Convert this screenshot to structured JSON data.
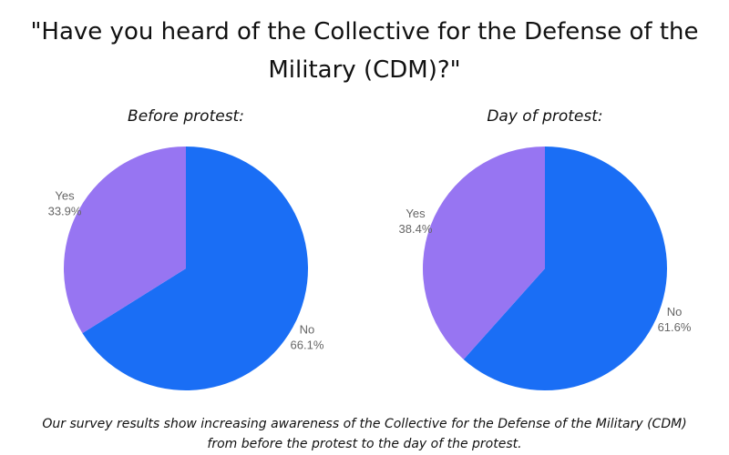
{
  "title": "\"Have you heard of the Collective for the Defense of the Military (CDM)?\"",
  "caption_line1": "Our survey results show increasing awareness of the Collective for the Defense of the Military (CDM)",
  "caption_line2": "from before the protest to the day of the protest.",
  "colors": {
    "no": "#1a6ef5",
    "yes": "#9775f2"
  },
  "chart_data": [
    {
      "type": "pie",
      "title": "Before protest:",
      "slices": [
        {
          "label": "No",
          "value": 66.1,
          "display": "66.1%"
        },
        {
          "label": "Yes",
          "value": 33.9,
          "display": "33.9%"
        }
      ]
    },
    {
      "type": "pie",
      "title": "Day of protest:",
      "slices": [
        {
          "label": "No",
          "value": 61.6,
          "display": "61.6%"
        },
        {
          "label": "Yes",
          "value": 38.4,
          "display": "38.4%"
        }
      ]
    }
  ]
}
